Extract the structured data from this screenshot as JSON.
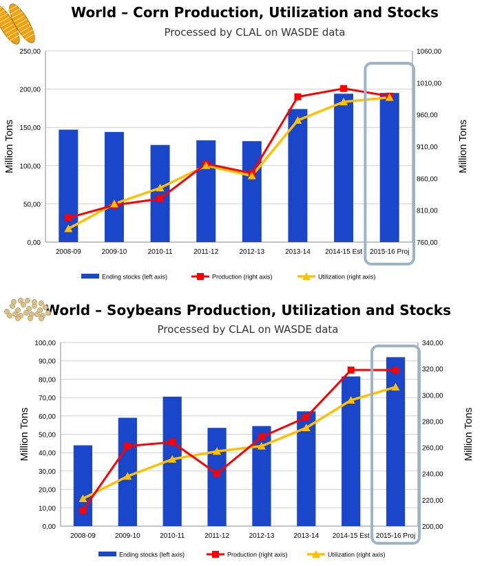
{
  "colors": {
    "bars": "#1a47c9",
    "production": "#ff0000",
    "utilization": "#ffc000",
    "highlight": "#9db3c8"
  },
  "chart_data": [
    {
      "type": "bar",
      "title": "World – Corn Production, Utilization and Stocks",
      "subtitle": "Processed by CLAL on WASDE data",
      "decoration": "corn-icon",
      "categories": [
        "2008-09",
        "2009-10",
        "2010-11",
        "2011-12",
        "2012-13",
        "2013-14",
        "2014-15 Est",
        "2015-16 Proj"
      ],
      "ylabel_left": "Million Tons",
      "ylabel_right": "Million Tons",
      "ylim_left": [
        0,
        250
      ],
      "yticks_left": [
        "0,00",
        "50,00",
        "100,00",
        "150,00",
        "200,00",
        "250,00"
      ],
      "ylim_right": [
        760,
        1060
      ],
      "yticks_right": [
        "760,00",
        "810,00",
        "860,00",
        "910,00",
        "960,00",
        "1010,00",
        "1060,00"
      ],
      "grid": true,
      "legend_position": "bottom",
      "highlight_category": "2015-16 Proj",
      "series": [
        {
          "name": "Ending stocks (left axis)",
          "kind": "bar",
          "axis": "left",
          "values": [
            147,
            144,
            127,
            133,
            132,
            174,
            194,
            195
          ]
        },
        {
          "name": "Production (right axis)",
          "kind": "line",
          "axis": "right",
          "marker": "square",
          "values": [
            798,
            818,
            828,
            883,
            868,
            988,
            1001,
            989
          ]
        },
        {
          "name": "Utilization (right axis)",
          "kind": "line",
          "axis": "right",
          "marker": "triangle",
          "values": [
            781,
            820,
            845,
            880,
            864,
            951,
            980,
            987
          ]
        }
      ]
    },
    {
      "type": "bar",
      "title": "World – Soybeans Production, Utilization and Stocks",
      "subtitle": "Processed by CLAL on WASDE data",
      "decoration": "soybeans-icon",
      "categories": [
        "2008-09",
        "2009-10",
        "2010-11",
        "2011-12",
        "2012-13",
        "2013-14",
        "2014-15 Est",
        "2015-16 Proj"
      ],
      "ylabel_left": "Million Tons",
      "ylabel_right": "Million Tons",
      "ylim_left": [
        0,
        100
      ],
      "yticks_left": [
        "0,00",
        "10,00",
        "20,00",
        "30,00",
        "40,00",
        "50,00",
        "60,00",
        "70,00",
        "80,00",
        "90,00",
        "100,00"
      ],
      "ylim_right": [
        200,
        340
      ],
      "yticks_right": [
        "200,00",
        "220,00",
        "240,00",
        "260,00",
        "280,00",
        "300,00",
        "320,00",
        "340,00"
      ],
      "grid": true,
      "legend_position": "bottom",
      "highlight_category": "2015-16 Proj",
      "series": [
        {
          "name": "Ending stocks (left axis)",
          "kind": "bar",
          "axis": "left",
          "values": [
            44,
            59,
            70.5,
            53.5,
            54.5,
            62.5,
            81.5,
            92
          ]
        },
        {
          "name": "Production (right axis)",
          "kind": "line",
          "axis": "right",
          "marker": "square",
          "values": [
            212,
            261,
            264,
            240,
            268,
            283,
            319,
            319
          ]
        },
        {
          "name": "Utilization (right axis)",
          "kind": "line",
          "axis": "right",
          "marker": "triangle",
          "values": [
            221,
            238,
            251,
            257,
            261,
            275,
            296,
            306
          ]
        }
      ]
    }
  ]
}
